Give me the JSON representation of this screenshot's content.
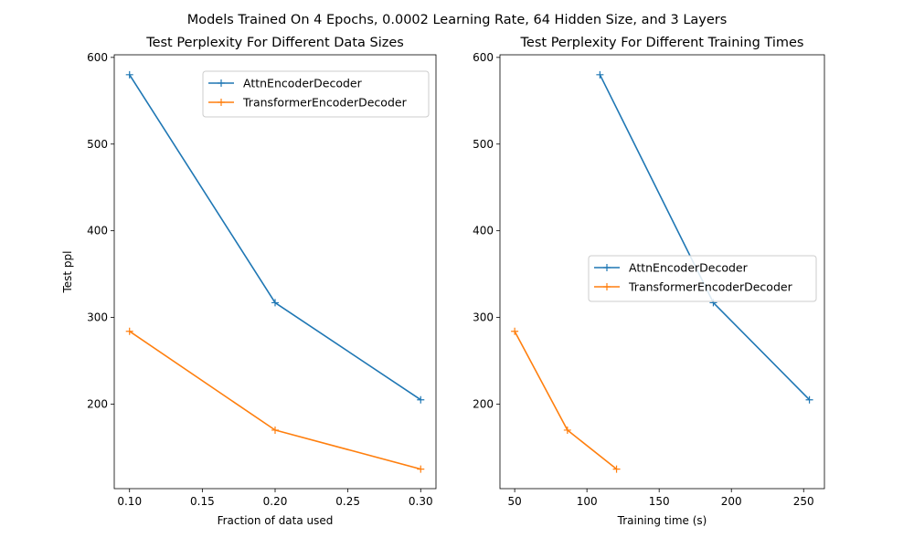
{
  "suptitle": "Models Trained On 4 Epochs, 0.0002 Learning Rate, 64 Hidden Size, and 3 Layers",
  "colors": {
    "blue": "#1f77b4",
    "orange": "#ff7f0e"
  },
  "chart_data": [
    {
      "type": "line",
      "title": "Test Perplexity For Different Data Sizes",
      "xlabel": "Fraction of data used",
      "ylabel": "Test ppl",
      "xlim": [
        0.0895,
        0.3105
      ],
      "ylim": [
        102.5,
        603
      ],
      "xticks": [
        0.1,
        0.15,
        0.2,
        0.25,
        0.3
      ],
      "xtick_labels": [
        "0.10",
        "0.15",
        "0.20",
        "0.25",
        "0.30"
      ],
      "yticks": [
        200,
        300,
        400,
        500,
        600
      ],
      "ytick_labels": [
        "200",
        "300",
        "400",
        "500",
        "600"
      ],
      "grid": false,
      "legend": "upper right",
      "marker": "+",
      "series": [
        {
          "name": "AttnEncoderDecoder",
          "color": "#1f77b4",
          "x": [
            0.1,
            0.2,
            0.3
          ],
          "y": [
            580,
            317,
            205
          ]
        },
        {
          "name": "TransformerEncoderDecoder",
          "color": "#ff7f0e",
          "x": [
            0.1,
            0.2,
            0.3
          ],
          "y": [
            284,
            170,
            125
          ]
        }
      ]
    },
    {
      "type": "line",
      "title": "Test Perplexity For Different Training Times",
      "xlabel": "Training time (s)",
      "ylabel": "",
      "xlim": [
        39.8,
        264.4
      ],
      "ylim": [
        102.5,
        603
      ],
      "xticks": [
        50,
        100,
        150,
        200,
        250
      ],
      "xtick_labels": [
        "50",
        "100",
        "150",
        "200",
        "250"
      ],
      "yticks": [
        200,
        300,
        400,
        500,
        600
      ],
      "ytick_labels": [
        "200",
        "300",
        "400",
        "500",
        "600"
      ],
      "grid": false,
      "legend": "center right",
      "marker": "+",
      "series": [
        {
          "name": "AttnEncoderDecoder",
          "color": "#1f77b4",
          "x": [
            109,
            187.5,
            254
          ],
          "y": [
            580,
            317,
            205
          ]
        },
        {
          "name": "TransformerEncoderDecoder",
          "color": "#ff7f0e",
          "x": [
            50,
            86.5,
            120.5
          ],
          "y": [
            284,
            170,
            125
          ]
        }
      ]
    }
  ]
}
